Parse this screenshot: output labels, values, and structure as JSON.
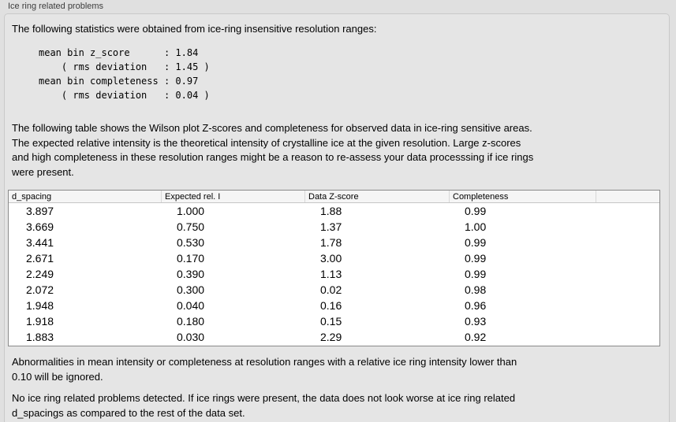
{
  "panel": {
    "title": "Ice ring related problems"
  },
  "intro_text": "The following statistics were obtained from ice-ring insensitive resolution ranges:",
  "stats_block": "mean bin z_score      : 1.84\n    ( rms deviation   : 1.45 )\nmean bin completeness : 0.97\n    ( rms deviation   : 0.04 )",
  "table_description": "The following table shows the Wilson plot Z-scores and completeness for observed data in ice-ring sensitive areas.\nThe expected relative intensity is the theoretical intensity of crystalline ice at the given resolution. Large z-scores\nand high completeness in these resolution ranges might be a reason to re-assess your data processsing if ice rings\nwere present.",
  "table": {
    "columns": [
      "d_spacing",
      "Expected rel. I",
      "Data Z-score",
      "Completeness"
    ],
    "rows": [
      [
        "3.897",
        "1.000",
        "1.88",
        "0.99"
      ],
      [
        "3.669",
        "0.750",
        "1.37",
        "1.00"
      ],
      [
        "3.441",
        "0.530",
        "1.78",
        "0.99"
      ],
      [
        "2.671",
        "0.170",
        "3.00",
        "0.99"
      ],
      [
        "2.249",
        "0.390",
        "1.13",
        "0.99"
      ],
      [
        "2.072",
        "0.300",
        "0.02",
        "0.98"
      ],
      [
        "1.948",
        "0.040",
        "0.16",
        "0.96"
      ],
      [
        "1.918",
        "0.180",
        "0.15",
        "0.93"
      ],
      [
        "1.883",
        "0.030",
        "2.29",
        "0.92"
      ]
    ]
  },
  "ignore_note": "Abnormalities in mean intensity or completeness at resolution ranges with a relative ice ring intensity lower than\n0.10 will be ignored.",
  "conclusion_text": "No ice ring related problems detected. If ice rings were present, the data does not look worse at ice ring related\nd_spacings as compared to the rest of the data set.",
  "colors": {
    "page_background": "#e0e0e0",
    "box_background": "#e5e5e5",
    "box_border": "#c9c9c9",
    "table_border": "#8a8a8a",
    "table_header_background": "#f5f5f5",
    "table_body_background": "#ffffff"
  }
}
